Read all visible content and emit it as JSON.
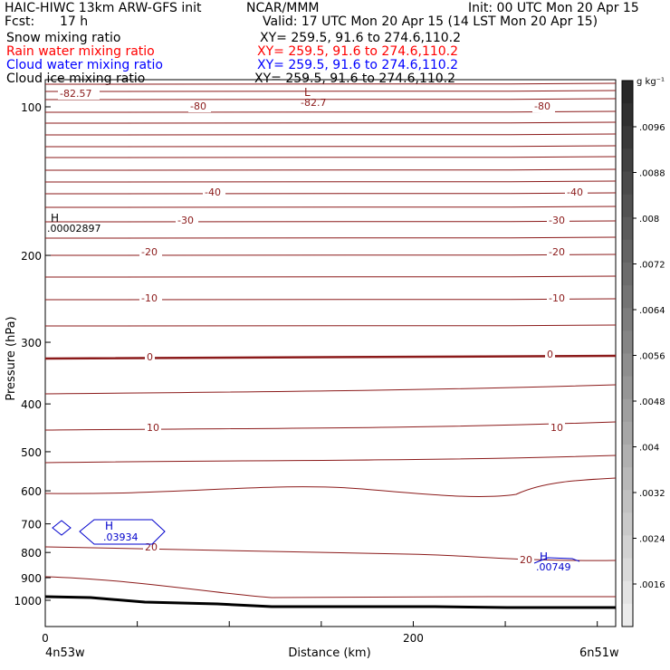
{
  "header": {
    "model": "HAIC-HIWC 13km ARW-GFS init",
    "org": "NCAR/MMM",
    "init": "Init: 00 UTC Mon 20 Apr 15",
    "fcst_label": "Fcst:",
    "fcst_value": "17 h",
    "valid": "Valid: 17 UTC Mon 20 Apr 15 (14 LST Mon 20 Apr 15)"
  },
  "fields": [
    {
      "name": "Snow mixing ratio",
      "xy": "XY= 259.5, 91.6 to 274.6,110.2",
      "color": "#000000"
    },
    {
      "name": "Rain water mixing ratio",
      "xy": "XY= 259.5, 91.6 to 274.6,110.2",
      "color": "#ff0000"
    },
    {
      "name": "Cloud water mixing ratio",
      "xy": "XY= 259.5, 91.6 to 274.6,110.2",
      "color": "#0000ff"
    },
    {
      "name": "Cloud ice mixing ratio",
      "xy": "XY= 259.5, 91.6 to 274.6,110.2",
      "color": "#000000"
    }
  ],
  "colorbar": {
    "unit": "g kg⁻¹",
    "ticks": [
      ".0096",
      ".0088",
      ".008",
      ".0072",
      ".0064",
      ".0056",
      ".0048",
      ".004",
      ".0032",
      ".0024",
      ".0016"
    ]
  },
  "chart_data": {
    "type": "cross-section",
    "xlabel": "Distance (km)",
    "ylabel": "Pressure (hPa)",
    "xlim": [
      0,
      310
    ],
    "ylim": [
      1050,
      50
    ],
    "y_scale": "log",
    "x_ticks": [
      0,
      200
    ],
    "y_ticks": [
      100,
      200,
      300,
      400,
      500,
      600,
      700,
      800,
      900,
      1000
    ],
    "x_start_label": "4n53w",
    "x_end_label": "6n51w",
    "temperature_contour_labels": [
      {
        "text": "-82.57"
      },
      {
        "text": "-80"
      },
      {
        "text": "-82.7"
      },
      {
        "text": "-80"
      },
      {
        "text": "-40"
      },
      {
        "text": "-40"
      },
      {
        "text": "-30"
      },
      {
        "text": "-30"
      },
      {
        "text": "-20"
      },
      {
        "text": "-20"
      },
      {
        "text": "-10"
      },
      {
        "text": "-10"
      },
      {
        "text": "0"
      },
      {
        "text": "0"
      },
      {
        "text": "10"
      },
      {
        "text": "10"
      },
      {
        "text": "20"
      },
      {
        "text": "20"
      }
    ],
    "extrema": [
      {
        "type": "L",
        "value": "-82.7",
        "color": "#8b1a1a"
      },
      {
        "type": "H",
        "value": ".00002897",
        "color": "#000000"
      },
      {
        "type": "H",
        "value": ".03934",
        "color": "#0000cc"
      },
      {
        "type": "H",
        "value": ".00749",
        "color": "#0000cc"
      }
    ],
    "colors": {
      "contour": "#8b1a1a",
      "cloud_water": "#0000cc",
      "terrain": "#000000"
    }
  }
}
